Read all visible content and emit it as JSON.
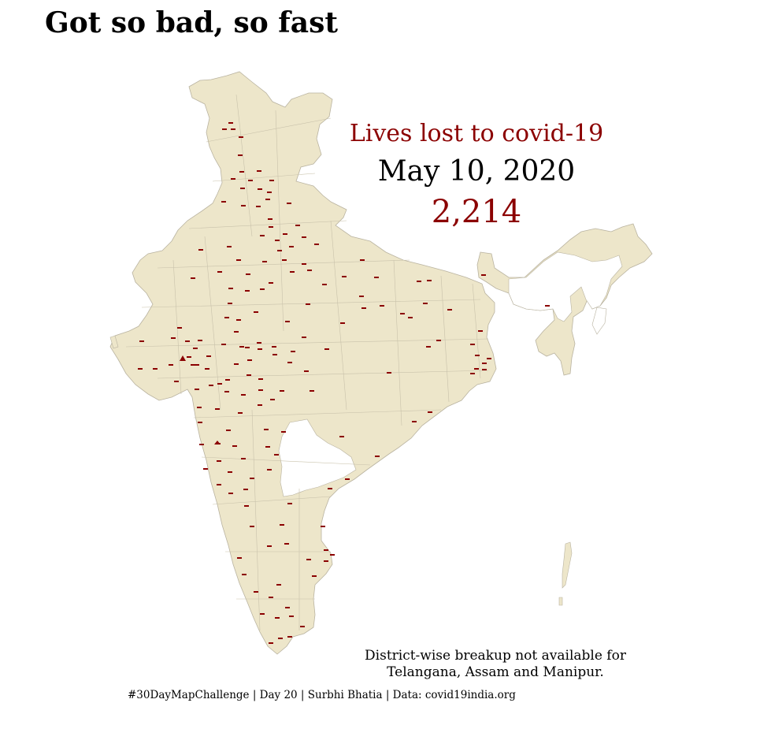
{
  "title": "Got so bad, so fast",
  "legend": {
    "caption": "Lives lost to covid-19",
    "date": "May 10, 2020",
    "total": "2,214"
  },
  "note": {
    "line1": "District-wise breakup not available for",
    "line2": "Telangana, Assam and Manipur."
  },
  "credit": "#30DayMapChallenge | Day 20 | Surbhi Bhatia | Data: covid19india.org",
  "colors": {
    "land": "#ede6ca",
    "border": "#b9b3a0",
    "no_data": "#ffffff",
    "marker": "#8b0000"
  },
  "no_data_regions": [
    "Telangana",
    "Assam",
    "Manipur"
  ]
}
